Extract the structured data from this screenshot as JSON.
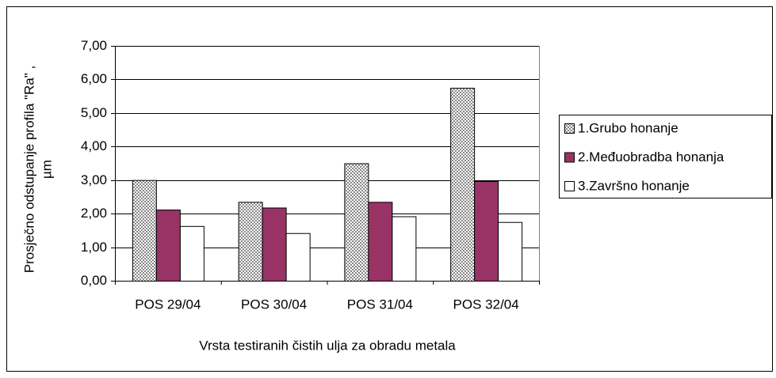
{
  "chart_data": {
    "type": "bar",
    "ylabel": [
      "Prosječno odstupanje profila \"Ra\" ,",
      "µm"
    ],
    "xlabel": "Vrsta testiranih čistih ulja za obradu metala",
    "categories": [
      "POS 29/04",
      "POS 30/04",
      "POS 31/04",
      "POS 32/04"
    ],
    "series": [
      {
        "name": "1.Grubo honanje",
        "color": "#c8c8c8",
        "pattern": "dots",
        "values": [
          3.0,
          2.35,
          3.5,
          5.75
        ]
      },
      {
        "name": "2.Međuobradba honanja",
        "color": "#993366",
        "values": [
          2.12,
          2.18,
          2.35,
          2.97
        ]
      },
      {
        "name": "3.Završno honanje",
        "color": "#ffffff",
        "values": [
          1.63,
          1.42,
          1.92,
          1.75
        ]
      }
    ],
    "ylim": [
      0,
      7
    ],
    "yticks": [
      {
        "value": 0,
        "label": "0,00"
      },
      {
        "value": 1,
        "label": "1,00"
      },
      {
        "value": 2,
        "label": "2,00"
      },
      {
        "value": 3,
        "label": "3,00"
      },
      {
        "value": 4,
        "label": "4,00"
      },
      {
        "value": 5,
        "label": "5,00"
      },
      {
        "value": 6,
        "label": "6,00"
      },
      {
        "value": 7,
        "label": "7,00"
      }
    ],
    "grid": true,
    "legend": "right"
  }
}
